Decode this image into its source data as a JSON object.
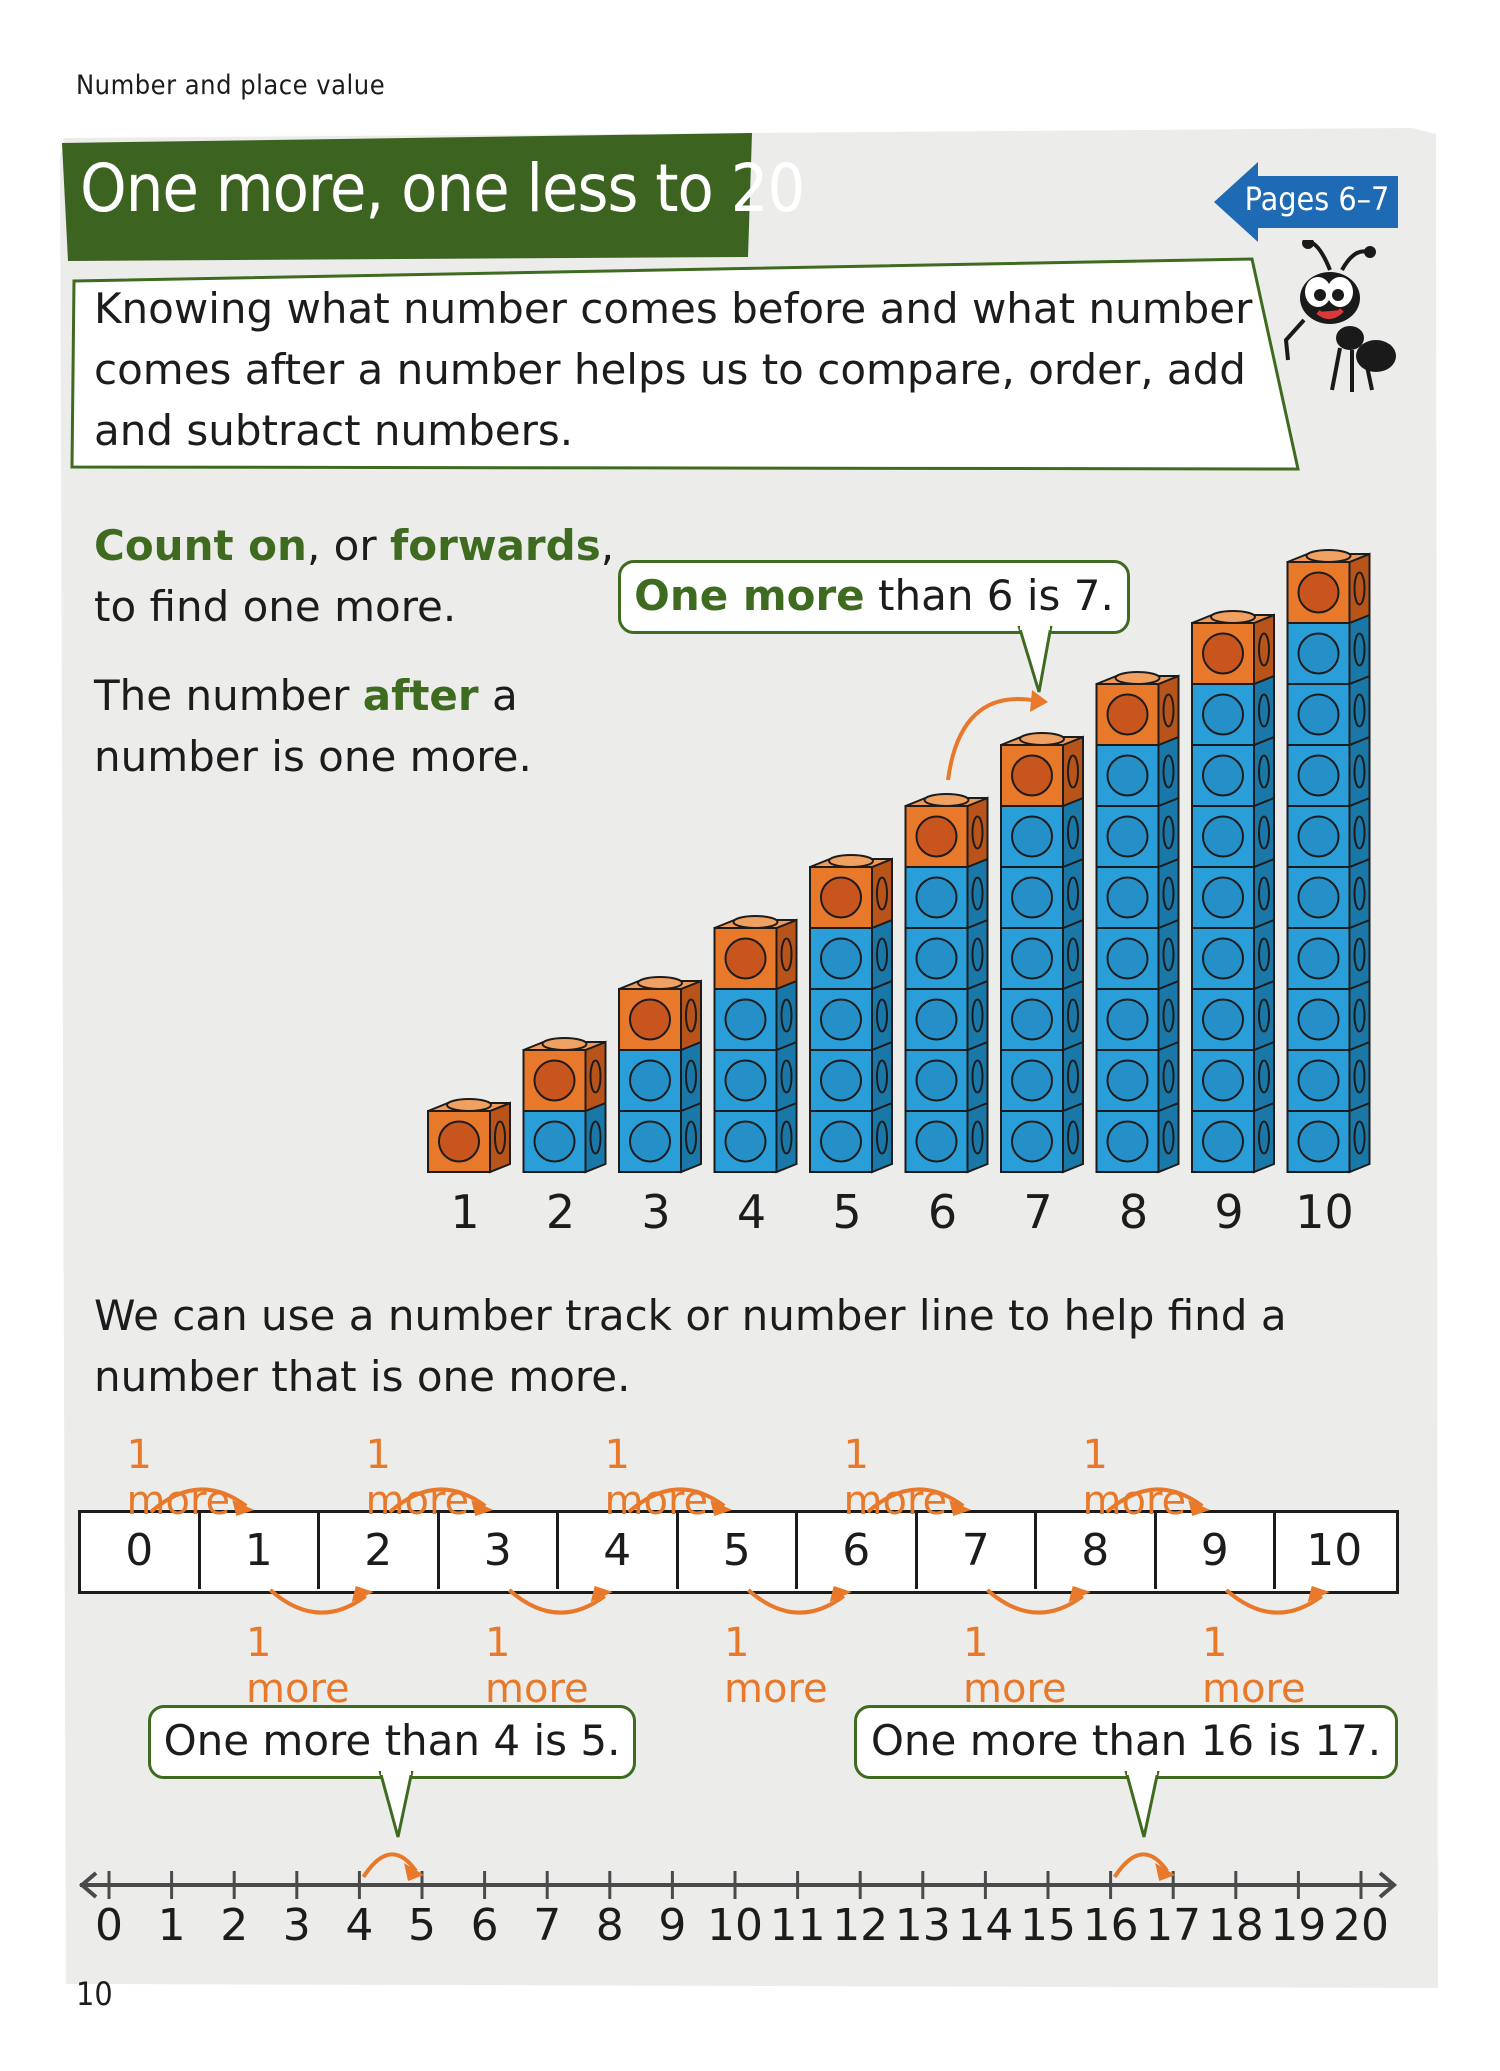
{
  "header": {
    "kicker": "Number and place value"
  },
  "title": "One more, one less to 20",
  "pages_tag": "Pages 6–7",
  "intro": "Knowing what number comes before and what number comes after a number helps us to compare, order, add and subtract numbers.",
  "count_on": {
    "bold1": "Count on",
    "mid": ", or ",
    "bold2": "forwards",
    "end": ",",
    "line2": "to find one more."
  },
  "after": {
    "pre": "The number ",
    "bold": "after",
    "post": " a",
    "line2": "number is one more."
  },
  "callout_six": {
    "bold": "One more",
    "rest": " than 6 is 7."
  },
  "cube_towers": {
    "heights": [
      1,
      2,
      3,
      4,
      5,
      6,
      7,
      8,
      9,
      10
    ],
    "labels": [
      "1",
      "2",
      "3",
      "4",
      "5",
      "6",
      "7",
      "8",
      "9",
      "10"
    ]
  },
  "track_intro": "We can use a number track or number line to help find a number that is one more.",
  "number_track": [
    "0",
    "1",
    "2",
    "3",
    "4",
    "5",
    "6",
    "7",
    "8",
    "9",
    "10"
  ],
  "more_label": "1 more",
  "callout_four": "One more than 4 is 5.",
  "callout_sixteen": "One more than 16 is 17.",
  "number_line": [
    "0",
    "1",
    "2",
    "3",
    "4",
    "5",
    "6",
    "7",
    "8",
    "9",
    "10",
    "11",
    "12",
    "13",
    "14",
    "15",
    "16",
    "17",
    "18",
    "19",
    "20"
  ],
  "page_number": "10",
  "colors": {
    "green": "#3e6b20",
    "orange": "#e8782a",
    "blue": "#2a9ed8",
    "panel": "#ecedea"
  }
}
